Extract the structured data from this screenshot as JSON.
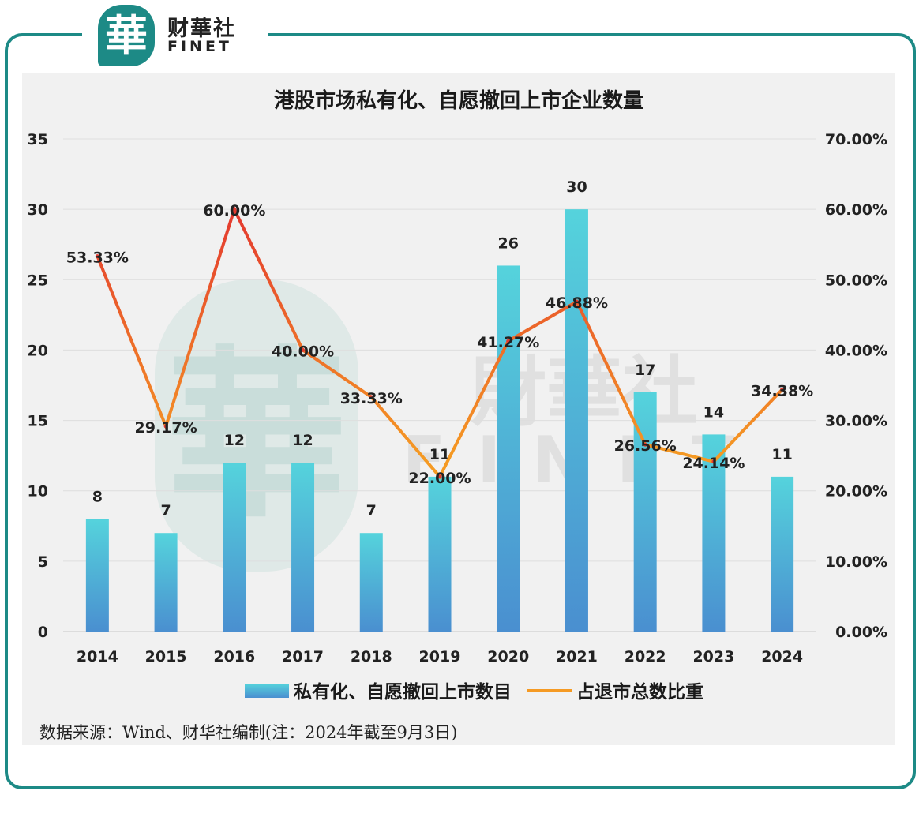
{
  "logo": {
    "badge_char": "華",
    "name_cn": "财華社",
    "name_en": "FINET"
  },
  "watermark": {
    "mark": "華",
    "cn": "財華社",
    "en": "FINET"
  },
  "chart_data": {
    "type": "bar",
    "title": "港股市场私有化、自愿撤回上市企业数量",
    "categories": [
      "2014",
      "2015",
      "2016",
      "2017",
      "2018",
      "2019",
      "2020",
      "2021",
      "2022",
      "2023",
      "2024"
    ],
    "series": [
      {
        "name": "私有化、自愿撤回上市数目",
        "type": "bar",
        "axis": "left",
        "values": [
          8,
          7,
          12,
          12,
          7,
          11,
          26,
          30,
          17,
          14,
          11
        ],
        "labels": [
          "8",
          "7",
          "12",
          "12",
          "7",
          "11",
          "26",
          "30",
          "17",
          "14",
          "11"
        ]
      },
      {
        "name": "占退市总数比重",
        "type": "line",
        "axis": "right",
        "values": [
          53.33,
          29.17,
          60.0,
          40.0,
          33.33,
          22.0,
          41.27,
          46.88,
          26.56,
          24.14,
          34.38
        ],
        "labels": [
          "53.33%",
          "29.17%",
          "60.00%",
          "40.00%",
          "33.33%",
          "22.00%",
          "41.27%",
          "46.88%",
          "26.56%",
          "24.14%",
          "34.38%"
        ]
      }
    ],
    "y_left": {
      "ylim": [
        0,
        35
      ],
      "ticks": [
        "0",
        "5",
        "10",
        "15",
        "20",
        "25",
        "30",
        "35"
      ]
    },
    "y_right": {
      "ylim": [
        0,
        70
      ],
      "ticks": [
        "0.00%",
        "10.00%",
        "20.00%",
        "30.00%",
        "40.00%",
        "50.00%",
        "60.00%",
        "70.00%"
      ]
    },
    "grid": true,
    "legend_position": "bottom",
    "colors": {
      "bar_top": "#55d3dc",
      "bar_bottom": "#4a8fd0",
      "line_low": "#f59a23",
      "line_high": "#e43a2f",
      "frame": "#1d8a86"
    }
  },
  "source_note": "数据来源：Wind、财华社编制(注：2024年截至9月3日)"
}
